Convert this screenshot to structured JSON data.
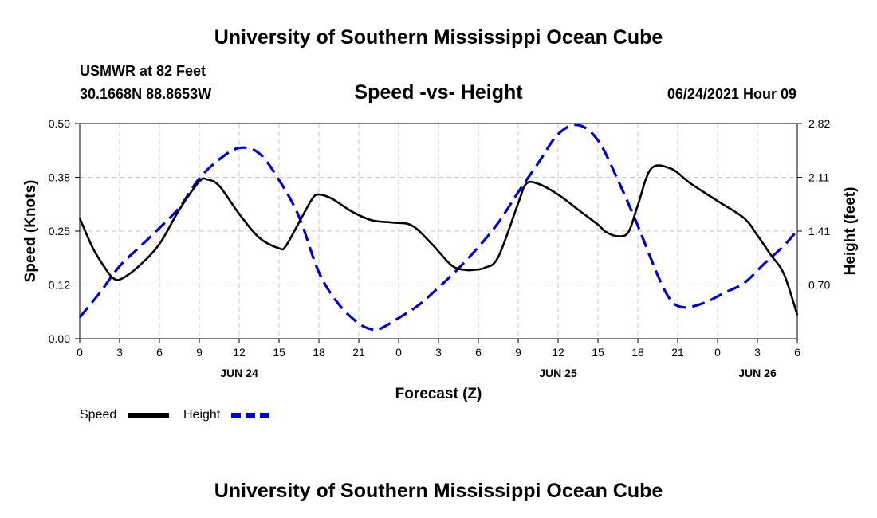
{
  "page": {
    "title_top": "University of Southern Mississippi Ocean Cube",
    "title_bottom": "University of Southern Mississippi Ocean Cube",
    "station": "USMWR at 82 Feet",
    "coords": "30.1668N  88.8653W",
    "date": "06/24/2021 Hour 09"
  },
  "colors": {
    "speed": "#000000",
    "height": "#0000cc",
    "grid": "#c8c8c8"
  },
  "chart_data": {
    "type": "line",
    "title": "Speed -vs- Height",
    "xlabel": "Forecast (Z)",
    "ylabel": "Speed (Knots)",
    "y2label": "Height (feet)",
    "x_range": [
      0,
      54
    ],
    "ylim": [
      0,
      0.5
    ],
    "y2lim": [
      0,
      2.82
    ],
    "x_ticks": [
      0,
      3,
      6,
      9,
      12,
      15,
      18,
      21,
      24,
      27,
      30,
      33,
      36,
      39,
      42,
      45,
      48,
      51,
      54
    ],
    "x_tick_labels": [
      "0",
      "3",
      "6",
      "9",
      "12",
      "15",
      "18",
      "21",
      "0",
      "3",
      "6",
      "9",
      "12",
      "15",
      "18",
      "21",
      "0",
      "3",
      "6"
    ],
    "y_ticks": [
      "0.00",
      "0.12",
      "0.25",
      "0.38",
      "0.50"
    ],
    "y_tick_values": [
      0,
      0.125,
      0.25,
      0.375,
      0.5
    ],
    "y2_ticks": [
      "0.70",
      "1.41",
      "2.11",
      "2.82"
    ],
    "y2_tick_values": [
      0.705,
      1.41,
      2.115,
      2.82
    ],
    "day_labels": [
      {
        "label": "JUN 24",
        "x": 12
      },
      {
        "label": "JUN 25",
        "x": 36
      },
      {
        "label": "JUN 26",
        "x": 51
      }
    ],
    "series": [
      {
        "name": "Speed",
        "axis": "left",
        "style": "solid",
        "x": [
          0,
          1,
          2,
          2.6,
          3.2,
          4.5,
          6,
          7.5,
          9,
          9.6,
          10.5,
          12,
          13.5,
          15,
          15.5,
          16.5,
          17.5,
          18,
          19,
          20.5,
          22,
          23.5,
          25,
          26.5,
          28,
          29,
          29.7,
          30.5,
          31.5,
          33,
          33.6,
          34.5,
          36,
          37.5,
          39,
          39.6,
          40.5,
          41.3,
          42,
          43,
          44.5,
          46,
          48,
          50,
          51,
          52,
          53,
          54
        ],
        "values": [
          0.28,
          0.21,
          0.16,
          0.139,
          0.14,
          0.17,
          0.22,
          0.3,
          0.365,
          0.37,
          0.355,
          0.29,
          0.235,
          0.21,
          0.215,
          0.27,
          0.325,
          0.335,
          0.325,
          0.295,
          0.275,
          0.27,
          0.263,
          0.22,
          0.17,
          0.16,
          0.16,
          0.165,
          0.19,
          0.315,
          0.36,
          0.36,
          0.335,
          0.3,
          0.265,
          0.248,
          0.238,
          0.248,
          0.31,
          0.395,
          0.395,
          0.36,
          0.32,
          0.28,
          0.24,
          0.195,
          0.15,
          0.055
        ]
      },
      {
        "name": "Height",
        "axis": "right",
        "style": "dashed",
        "x": [
          0,
          1.5,
          3,
          4.5,
          6,
          7.5,
          9,
          10.5,
          12,
          13.5,
          15,
          16.5,
          18,
          19.5,
          21,
          22,
          22.5,
          24,
          25.5,
          27,
          28.5,
          30,
          31.5,
          33,
          34.5,
          36,
          37.5,
          39,
          40.5,
          42,
          43.5,
          44.5,
          45.5,
          47,
          48.5,
          50,
          51.5,
          53,
          54
        ],
        "values": [
          0.28,
          0.6,
          0.95,
          1.2,
          1.45,
          1.72,
          2.1,
          2.35,
          2.5,
          2.43,
          2.08,
          1.6,
          0.87,
          0.45,
          0.2,
          0.12,
          0.12,
          0.27,
          0.44,
          0.67,
          0.92,
          1.2,
          1.52,
          1.92,
          2.3,
          2.68,
          2.8,
          2.6,
          2.08,
          1.48,
          0.83,
          0.5,
          0.41,
          0.47,
          0.6,
          0.73,
          0.98,
          1.22,
          1.42
        ]
      }
    ],
    "legend": [
      "Speed",
      "Height"
    ],
    "legend_position": "bottom-left",
    "grid": true
  }
}
